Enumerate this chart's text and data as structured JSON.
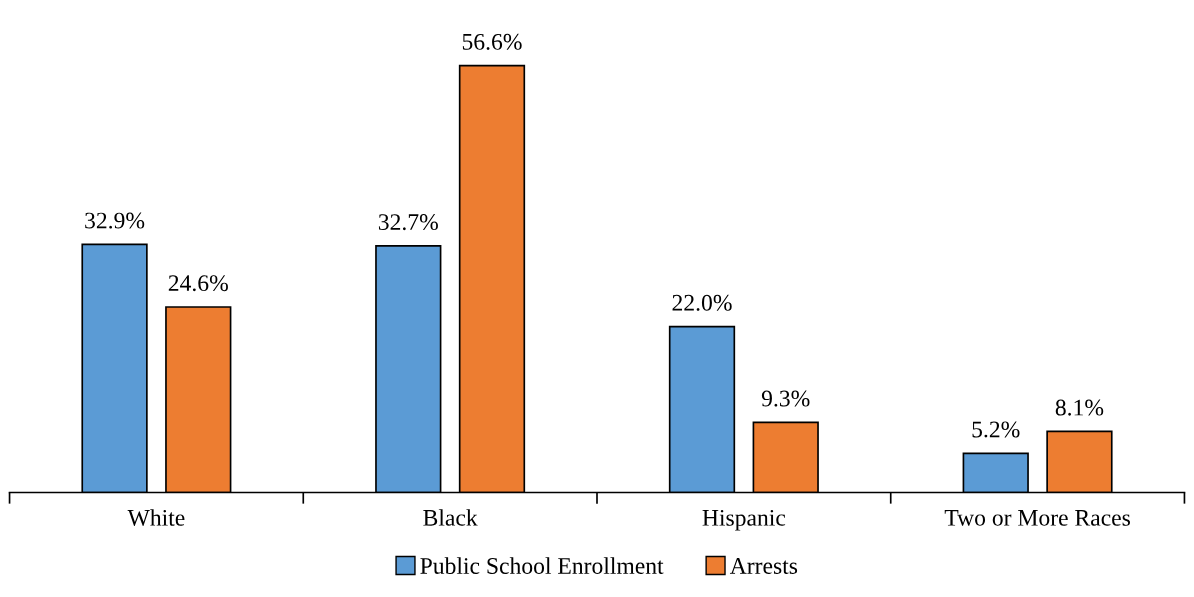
{
  "chart_data": {
    "type": "bar",
    "categories": [
      "White",
      "Black",
      "Hispanic",
      "Two or More Races"
    ],
    "series": [
      {
        "name": "Public School Enrollment",
        "color": "#5b9bd5",
        "values": [
          32.9,
          32.7,
          22.0,
          5.2
        ],
        "value_labels": [
          "32.9%",
          "32.7%",
          "22.0%",
          "5.2%"
        ]
      },
      {
        "name": "Arrests",
        "color": "#ed7d31",
        "values": [
          24.6,
          56.6,
          9.3,
          8.1
        ],
        "value_labels": [
          "24.6%",
          "56.6%",
          "9.3%",
          "8.1%"
        ]
      }
    ],
    "legend": "bottom",
    "grid": false
  }
}
